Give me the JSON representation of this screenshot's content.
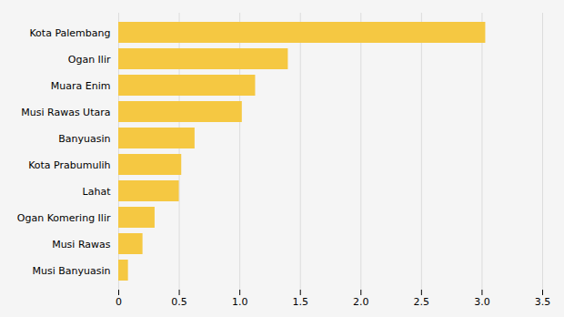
{
  "chart_data": {
    "type": "bar",
    "orientation": "horizontal",
    "categories": [
      "Musi Banyuasin",
      "Musi Rawas",
      "Ogan Komering Ilir",
      "Lahat",
      "Kota Prabumulih",
      "Banyuasin",
      "Musi Rawas Utara",
      "Muara Enim",
      "Ogan Ilir",
      "Kota Palembang"
    ],
    "values": [
      0.08,
      0.2,
      0.3,
      0.5,
      0.52,
      0.63,
      1.02,
      1.13,
      1.4,
      3.03
    ],
    "color": "#F5C842",
    "xlim": [
      0,
      3.5
    ],
    "xticks": [
      0,
      0.5,
      {
        "value": 1,
        "label": "1.0"
      },
      1.5,
      {
        "value": 2,
        "label": "2.0"
      },
      2.5,
      {
        "value": 3,
        "label": "3.0"
      },
      3.5
    ],
    "grid": true
  }
}
